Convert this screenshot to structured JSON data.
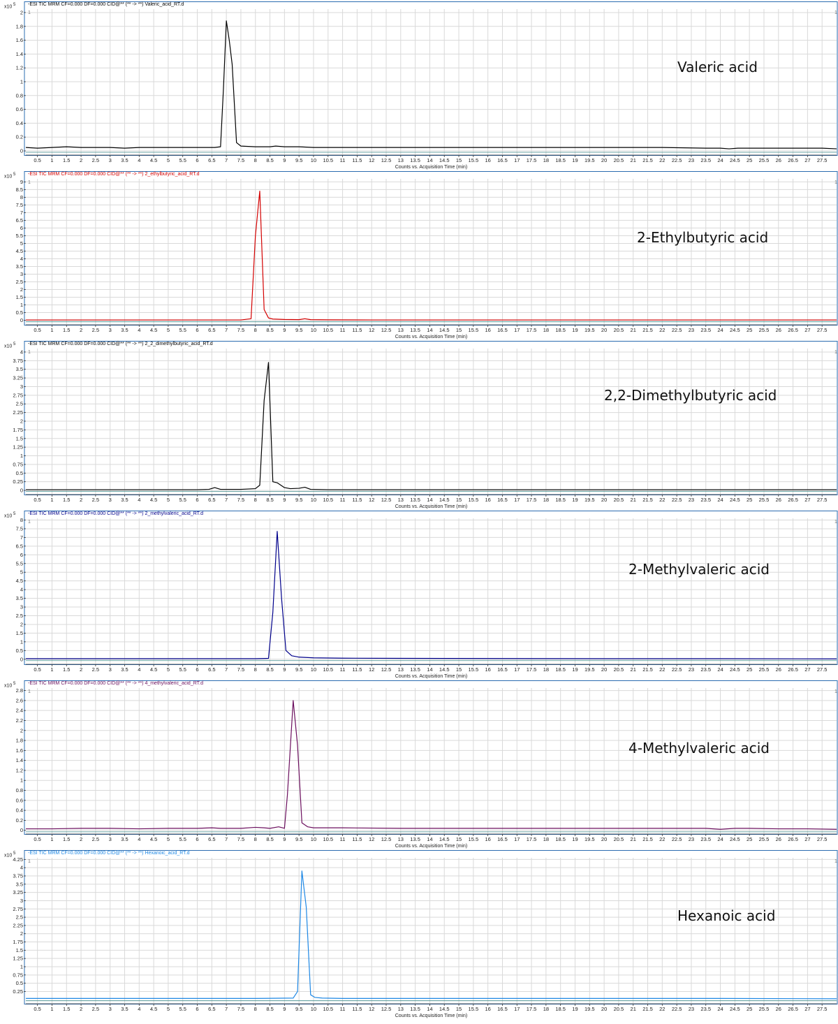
{
  "chart_data": [
    {
      "type": "line",
      "title": "-ESI TIC MRM CF=0.000 DF=0.000 CID@** (** -> **) Valeric_acid_RT.d",
      "annotation": "Valeric acid",
      "series_color": "#000000",
      "xlabel": "Counts vs. Acquisition Time (min)",
      "ylabel_scale": "x10",
      "ylabel_exponent": "5",
      "y_corner_label": "1",
      "xlim": [
        0.1,
        28.0
      ],
      "ylim": [
        -0.05,
        2.05
      ],
      "yticks": [
        "0",
        "0.2",
        "0.4",
        "0.6",
        "0.8",
        "1",
        "1.2",
        "1.4",
        "1.6",
        "1.8",
        "2"
      ],
      "ytick_values": [
        0,
        0.2,
        0.4,
        0.6,
        0.8,
        1,
        1.2,
        1.4,
        1.6,
        1.8,
        2
      ],
      "xticks": [
        "0.5",
        "1",
        "1.5",
        "2",
        "2.5",
        "3",
        "3.5",
        "4",
        "4.5",
        "5",
        "5.5",
        "6",
        "6.5",
        "7",
        "7.5",
        "8",
        "8.5",
        "9",
        "9.5",
        "10",
        "10.5",
        "11",
        "11.5",
        "12",
        "12.5",
        "13",
        "13.5",
        "14",
        "14.5",
        "15",
        "15.5",
        "16",
        "16.5",
        "17",
        "17.5",
        "18",
        "18.5",
        "19",
        "19.5",
        "20",
        "20.5",
        "21",
        "21.5",
        "22",
        "22.5",
        "23",
        "23.5",
        "24",
        "24.5",
        "25",
        "25.5",
        "26",
        "26.5",
        "27",
        "27.5"
      ],
      "x": [
        0.1,
        0.5,
        1,
        1.5,
        2,
        3,
        3.5,
        4,
        5,
        6,
        6.6,
        6.8,
        6.9,
        7.0,
        7.1,
        7.2,
        7.35,
        7.5,
        8,
        8.5,
        8.7,
        9,
        9.5,
        10,
        12,
        15,
        18,
        20,
        22,
        23.5,
        24,
        24.3,
        24.6,
        25,
        26,
        27,
        27.5,
        28
      ],
      "values": [
        0.05,
        0.04,
        0.05,
        0.06,
        0.05,
        0.05,
        0.04,
        0.05,
        0.05,
        0.05,
        0.05,
        0.06,
        0.9,
        1.88,
        1.6,
        1.25,
        0.12,
        0.07,
        0.06,
        0.06,
        0.07,
        0.06,
        0.06,
        0.05,
        0.05,
        0.05,
        0.05,
        0.05,
        0.05,
        0.04,
        0.04,
        0.03,
        0.04,
        0.04,
        0.04,
        0.04,
        0.04,
        0.03
      ],
      "baseline": -0.02
    },
    {
      "type": "line",
      "title": "-ESI TIC MRM CF=0.000 DF=0.000 CID@** (** -> **) 2_ethylbutyric_acid_RT.d",
      "annotation": "2-Ethylbutyric acid",
      "series_color": "#d40000",
      "xlabel": "Counts vs. Acquisition Time (min)",
      "ylabel_scale": "x10",
      "ylabel_exponent": "5",
      "y_corner_label": "1",
      "xlim": [
        0.1,
        28.0
      ],
      "ylim": [
        -0.25,
        9.2
      ],
      "yticks": [
        "0",
        "0.5",
        "1",
        "1.5",
        "2",
        "2.5",
        "3",
        "3.5",
        "4",
        "4.5",
        "5",
        "5.5",
        "6",
        "6.5",
        "7",
        "7.5",
        "8",
        "8.5",
        "9"
      ],
      "ytick_values": [
        0,
        0.5,
        1,
        1.5,
        2,
        2.5,
        3,
        3.5,
        4,
        4.5,
        5,
        5.5,
        6,
        6.5,
        7,
        7.5,
        8,
        8.5,
        9
      ],
      "xticks": [
        "0.5",
        "1",
        "1.5",
        "2",
        "2.5",
        "3",
        "3.5",
        "4",
        "4.5",
        "5",
        "5.5",
        "6",
        "6.5",
        "7",
        "7.5",
        "8",
        "8.5",
        "9",
        "9.5",
        "10",
        "10.5",
        "11",
        "11.5",
        "12",
        "12.5",
        "13",
        "13.5",
        "14",
        "14.5",
        "15",
        "15.5",
        "16",
        "16.5",
        "17",
        "17.5",
        "18",
        "18.5",
        "19",
        "19.5",
        "20",
        "20.5",
        "21",
        "21.5",
        "22",
        "22.5",
        "23",
        "23.5",
        "24",
        "24.5",
        "25",
        "25.5",
        "26",
        "26.5",
        "27",
        "27.5"
      ],
      "x": [
        0.1,
        2,
        4,
        6,
        7.5,
        7.85,
        8.0,
        8.15,
        8.3,
        8.45,
        8.6,
        9,
        9.5,
        9.7,
        9.9,
        10.5,
        12,
        15,
        20,
        25,
        28
      ],
      "values": [
        0.02,
        0.02,
        0.02,
        0.02,
        0.02,
        0.1,
        5.5,
        8.4,
        0.7,
        0.15,
        0.08,
        0.05,
        0.04,
        0.1,
        0.04,
        0.03,
        0.02,
        0.02,
        0.02,
        0.02,
        0.02
      ],
      "baseline": -0.1
    },
    {
      "type": "line",
      "title": "-ESI TIC MRM CF=0.000 DF=0.000 CID@** (** -> **) 2_2_dimethylbutyric_acid_RT.d",
      "annotation": "2,2-Dimethylbutyric acid",
      "series_color": "#000000",
      "xlabel": "Counts vs. Acquisition Time (min)",
      "ylabel_scale": "x10",
      "ylabel_exponent": "5",
      "y_corner_label": "1",
      "xlim": [
        0.1,
        28.0
      ],
      "ylim": [
        -0.1,
        4.1
      ],
      "yticks": [
        "0",
        "0.25",
        "0.5",
        "0.75",
        "1",
        "1.25",
        "1.5",
        "1.75",
        "2",
        "2.25",
        "2.5",
        "2.75",
        "3",
        "3.25",
        "3.5",
        "3.75",
        "4"
      ],
      "ytick_values": [
        0,
        0.25,
        0.5,
        0.75,
        1,
        1.25,
        1.5,
        1.75,
        2,
        2.25,
        2.5,
        2.75,
        3,
        3.25,
        3.5,
        3.75,
        4
      ],
      "xticks": [
        "0.5",
        "1",
        "1.5",
        "2",
        "2.5",
        "3",
        "3.5",
        "4",
        "4.5",
        "5",
        "5.5",
        "6",
        "6.5",
        "7",
        "7.5",
        "8",
        "8.5",
        "9",
        "9.5",
        "10",
        "10.5",
        "11",
        "11.5",
        "12",
        "12.5",
        "13",
        "13.5",
        "14",
        "14.5",
        "15",
        "15.5",
        "16",
        "16.5",
        "17",
        "17.5",
        "18",
        "18.5",
        "19",
        "19.5",
        "20",
        "20.5",
        "21",
        "21.5",
        "22",
        "22.5",
        "23",
        "23.5",
        "24",
        "24.5",
        "25",
        "25.5",
        "26",
        "26.5",
        "27",
        "27.5"
      ],
      "x": [
        0.1,
        2,
        4,
        6,
        6.4,
        6.6,
        6.8,
        7,
        7.5,
        8,
        8.15,
        8.3,
        8.45,
        8.6,
        8.75,
        9,
        9.2,
        9.5,
        9.7,
        9.9,
        10.5,
        12,
        15,
        20,
        25,
        28
      ],
      "values": [
        0.02,
        0.02,
        0.02,
        0.02,
        0.03,
        0.08,
        0.03,
        0.03,
        0.03,
        0.05,
        0.15,
        2.6,
        3.7,
        0.25,
        0.22,
        0.08,
        0.05,
        0.06,
        0.09,
        0.03,
        0.02,
        0.02,
        0.02,
        0.02,
        0.02,
        0.02
      ],
      "baseline": -0.03
    },
    {
      "type": "line",
      "title": "-ESI TIC MRM CF=0.000 DF=0.000 CID@** (** -> **) 2_methylvaleric_acid_RT.d",
      "annotation": "2-Methylvaleric acid",
      "series_color": "#00008b",
      "xlabel": "Counts vs. Acquisition Time (min)",
      "ylabel_scale": "x10",
      "ylabel_exponent": "5",
      "y_corner_label": "1",
      "xlim": [
        0.1,
        28.0
      ],
      "ylim": [
        -0.25,
        8.1
      ],
      "yticks": [
        "0",
        "0.5",
        "1",
        "1.5",
        "2",
        "2.5",
        "3",
        "3.5",
        "4",
        "4.5",
        "5",
        "5.5",
        "6",
        "6.5",
        "7",
        "7.5",
        "8"
      ],
      "ytick_values": [
        0,
        0.5,
        1,
        1.5,
        2,
        2.5,
        3,
        3.5,
        4,
        4.5,
        5,
        5.5,
        6,
        6.5,
        7,
        7.5,
        8
      ],
      "xticks": [
        "0.5",
        "1",
        "1.5",
        "2",
        "2.5",
        "3",
        "3.5",
        "4",
        "4.5",
        "5",
        "5.5",
        "6",
        "6.5",
        "7",
        "7.5",
        "8",
        "8.5",
        "9",
        "9.5",
        "10",
        "10.5",
        "11",
        "11.5",
        "12",
        "12.5",
        "13",
        "13.5",
        "14",
        "14.5",
        "15",
        "15.5",
        "16",
        "16.5",
        "17",
        "17.5",
        "18",
        "18.5",
        "19",
        "19.5",
        "20",
        "20.5",
        "21",
        "21.5",
        "22",
        "22.5",
        "23",
        "23.5",
        "24",
        "24.5",
        "25",
        "25.5",
        "26",
        "26.5",
        "27",
        "27.5"
      ],
      "x": [
        0.1,
        2,
        4,
        6,
        8,
        8.45,
        8.6,
        8.75,
        8.9,
        9.05,
        9.25,
        9.5,
        10,
        11,
        13,
        16,
        20,
        24,
        28
      ],
      "values": [
        0.03,
        0.03,
        0.03,
        0.03,
        0.03,
        0.05,
        2.7,
        7.35,
        3.5,
        0.5,
        0.2,
        0.12,
        0.08,
        0.06,
        0.05,
        0.04,
        0.03,
        0.03,
        0.02
      ],
      "baseline": -0.08
    },
    {
      "type": "line",
      "title": "-ESI TIC MRM CF=0.000 DF=0.000 CID@** (** -> **) 4_methylvaleric_acid_RT.d",
      "annotation": "4-Methylvaleric acid",
      "series_color": "#6b0f5e",
      "xlabel": "Counts vs. Acquisition Time (min)",
      "ylabel_scale": "x10",
      "ylabel_exponent": "5",
      "y_corner_label": "1",
      "xlim": [
        0.1,
        28.0
      ],
      "ylim": [
        -0.06,
        2.85
      ],
      "yticks": [
        "0",
        "0.2",
        "0.4",
        "0.6",
        "0.8",
        "1",
        "1.2",
        "1.4",
        "1.6",
        "1.8",
        "2",
        "2.2",
        "2.4",
        "2.6",
        "2.8"
      ],
      "ytick_values": [
        0,
        0.2,
        0.4,
        0.6,
        0.8,
        1,
        1.2,
        1.4,
        1.6,
        1.8,
        2,
        2.2,
        2.4,
        2.6,
        2.8
      ],
      "xticks": [
        "0.5",
        "1",
        "1.5",
        "2",
        "2.5",
        "3",
        "3.5",
        "4",
        "4.5",
        "5",
        "5.5",
        "6",
        "6.5",
        "7",
        "7.5",
        "8",
        "8.5",
        "9",
        "9.5",
        "10",
        "10.5",
        "11",
        "11.5",
        "12",
        "12.5",
        "13",
        "13.5",
        "14",
        "14.5",
        "15",
        "15.5",
        "16",
        "16.5",
        "17",
        "17.5",
        "18",
        "18.5",
        "19",
        "19.5",
        "20",
        "20.5",
        "21",
        "21.5",
        "22",
        "22.5",
        "23",
        "23.5",
        "24",
        "24.5",
        "25",
        "25.5",
        "26",
        "26.5",
        "27",
        "27.5"
      ],
      "x": [
        0.1,
        1,
        2,
        3,
        4,
        5,
        6,
        6.5,
        6.8,
        7,
        7.5,
        8,
        8.3,
        8.5,
        8.8,
        9,
        9.1,
        9.3,
        9.45,
        9.6,
        9.8,
        10,
        11,
        13,
        16,
        20,
        23.5,
        24,
        24.5,
        25,
        26,
        27,
        28
      ],
      "values": [
        0.03,
        0.03,
        0.04,
        0.04,
        0.03,
        0.04,
        0.04,
        0.05,
        0.04,
        0.04,
        0.04,
        0.06,
        0.05,
        0.04,
        0.07,
        0.04,
        0.7,
        2.6,
        1.7,
        0.15,
        0.07,
        0.05,
        0.05,
        0.04,
        0.04,
        0.04,
        0.04,
        0.02,
        0.04,
        0.04,
        0.03,
        0.03,
        0.02
      ],
      "baseline": -0.03
    },
    {
      "type": "line",
      "title": "-ESI TIC MRM CF=0.000 DF=0.000 CID@** (** -> **) Hexanoic_acid_RT.d",
      "annotation": "Hexanoic acid",
      "series_color": "#1e88e5",
      "xlabel": "Counts vs. Acquisition Time (min)",
      "ylabel_scale": "x10",
      "ylabel_exponent": "5",
      "y_corner_label": "1",
      "xlim": [
        0.1,
        28.0
      ],
      "ylim": [
        -0.1,
        4.3
      ],
      "yticks": [
        "0.25",
        "0.5",
        "0.75",
        "1",
        "1.25",
        "1.5",
        "1.75",
        "2",
        "2.25",
        "2.5",
        "2.75",
        "3",
        "3.25",
        "3.5",
        "3.75",
        "4",
        "4.25"
      ],
      "ytick_values": [
        0.25,
        0.5,
        0.75,
        1,
        1.25,
        1.5,
        1.75,
        2,
        2.25,
        2.5,
        2.75,
        3,
        3.25,
        3.5,
        3.75,
        4,
        4.25
      ],
      "xticks": [
        "0.5",
        "1",
        "1.5",
        "2",
        "2.5",
        "3",
        "3.5",
        "4",
        "4.5",
        "5",
        "5.5",
        "6",
        "6.5",
        "7",
        "7.5",
        "8",
        "8.5",
        "9",
        "9.5",
        "10",
        "10.5",
        "11",
        "11.5",
        "12",
        "12.5",
        "13",
        "13.5",
        "14",
        "14.5",
        "15",
        "15.5",
        "16",
        "16.5",
        "17",
        "17.5",
        "18",
        "18.5",
        "19",
        "19.5",
        "20",
        "20.5",
        "21",
        "21.5",
        "22",
        "22.5",
        "23",
        "23.5",
        "24",
        "24.5",
        "25",
        "25.5",
        "26",
        "26.5",
        "27",
        "27.5"
      ],
      "x": [
        0.1,
        2,
        4,
        6,
        8,
        9.3,
        9.45,
        9.6,
        9.75,
        9.9,
        10.05,
        10.3,
        11,
        13,
        16,
        20,
        24,
        28
      ],
      "values": [
        0.04,
        0.04,
        0.04,
        0.04,
        0.04,
        0.05,
        0.25,
        3.9,
        2.8,
        0.15,
        0.07,
        0.05,
        0.04,
        0.04,
        0.04,
        0.04,
        0.04,
        0.03
      ],
      "baseline": -0.03
    }
  ]
}
